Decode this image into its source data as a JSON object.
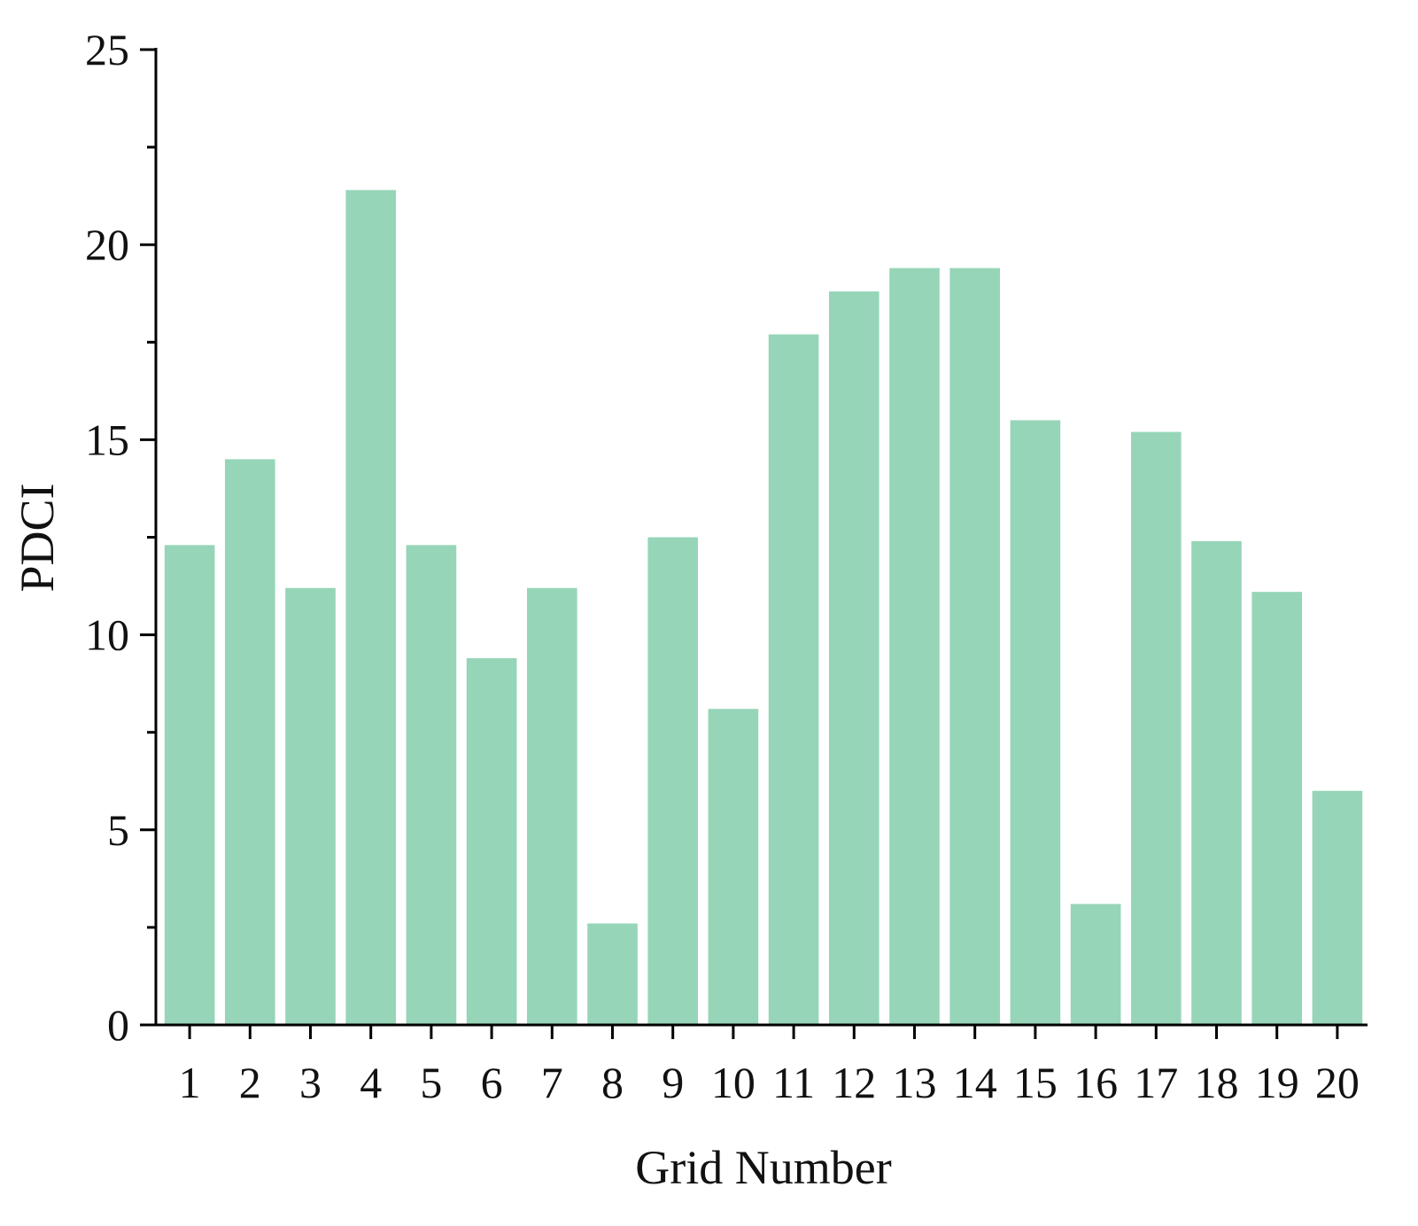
{
  "chart_data": {
    "type": "bar",
    "title": "",
    "xlabel": "Grid Number",
    "ylabel": "PDCI",
    "categories": [
      "1",
      "2",
      "3",
      "4",
      "5",
      "6",
      "7",
      "8",
      "9",
      "10",
      "11",
      "12",
      "13",
      "14",
      "15",
      "16",
      "17",
      "18",
      "19",
      "20"
    ],
    "values": [
      12.3,
      14.5,
      11.2,
      21.4,
      12.3,
      9.4,
      11.2,
      2.6,
      12.5,
      8.1,
      17.7,
      18.8,
      19.4,
      19.4,
      15.5,
      3.1,
      15.2,
      12.4,
      11.1,
      6.0
    ],
    "ylim": [
      0,
      25
    ],
    "yticks": [
      "0",
      "5",
      "10",
      "15",
      "20",
      "25"
    ],
    "y_minor_step": 2.5,
    "grid": false,
    "legend": "none",
    "colors": {
      "bar": "#96d5b8",
      "axis": "#000000",
      "text": "#111111"
    }
  }
}
